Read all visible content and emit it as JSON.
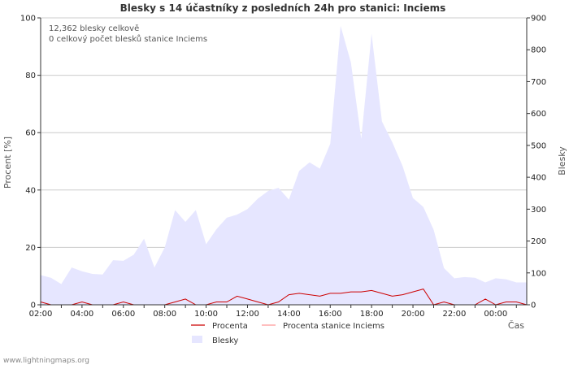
{
  "chart_data": {
    "type": "area",
    "title": "Blesky s 14 účastníky z posledních 24h pro stanici: Inciems",
    "xlabel": "Čas",
    "ylabel_left": "Procent   [%]",
    "ylabel_right": "Blesky",
    "ylim_left": [
      0,
      100
    ],
    "ylim_right": [
      0,
      900
    ],
    "yticks_left": [
      "0",
      "20",
      "40",
      "60",
      "80",
      "100"
    ],
    "yticks_right": [
      "0",
      "100",
      "200",
      "300",
      "400",
      "500",
      "600",
      "700",
      "800",
      "900"
    ],
    "x_tick_labels": [
      "02:00",
      "04:00",
      "06:00",
      "08:00",
      "10:00",
      "12:00",
      "14:00",
      "16:00",
      "18:00",
      "20:00",
      "22:00",
      "00:00"
    ],
    "x_hours": [
      0,
      0.5,
      1,
      1.5,
      2,
      2.5,
      3,
      3.5,
      4,
      4.5,
      5,
      5.5,
      6,
      6.5,
      7,
      7.5,
      8,
      8.5,
      9,
      9.5,
      10,
      10.5,
      11,
      11.5,
      12,
      12.5,
      13,
      13.5,
      14,
      14.5,
      15,
      15.5,
      16,
      16.5,
      17,
      17.5,
      18,
      18.5,
      19,
      19.5,
      20,
      20.5,
      21,
      21.5,
      22,
      22.5,
      23,
      23.5
    ],
    "annotations": [
      "12,362 blesky celkově",
      "0 celkový počet blesků stanice Inciems"
    ],
    "series": [
      {
        "name": "Blesky",
        "axis": "right",
        "color": "#e6e6ff",
        "values": [
          93,
          85,
          65,
          117,
          105,
          97,
          95,
          140,
          138,
          157,
          207,
          117,
          180,
          297,
          260,
          297,
          190,
          237,
          273,
          283,
          300,
          333,
          357,
          367,
          330,
          420,
          447,
          427,
          505,
          875,
          760,
          520,
          850,
          575,
          510,
          435,
          335,
          307,
          235,
          115,
          83,
          87,
          85,
          70,
          83,
          80,
          70,
          70
        ]
      },
      {
        "name": "Procenta",
        "axis": "left",
        "color": "#cc0000",
        "values": [
          1,
          0,
          0,
          0,
          1,
          0,
          0,
          0,
          1,
          0,
          0,
          0,
          0,
          1,
          2,
          0,
          0,
          1,
          1,
          3,
          2,
          1,
          0,
          1,
          3.5,
          4,
          3.5,
          3,
          4,
          4,
          4.5,
          4.5,
          5,
          4,
          3,
          3.5,
          4.5,
          5.5,
          0,
          1,
          0,
          0,
          0,
          2,
          0,
          1,
          1,
          0
        ]
      },
      {
        "name": "Procenta stanice Inciems",
        "axis": "left",
        "color": "#ff9999",
        "values": [
          0,
          0,
          0,
          0,
          0,
          0,
          0,
          0,
          0,
          0,
          0,
          0,
          0,
          0,
          0,
          0,
          0,
          0,
          0,
          0,
          0,
          0,
          0,
          0,
          0,
          0,
          0,
          0,
          0,
          0,
          0,
          0,
          0,
          0,
          0,
          0,
          0,
          0,
          0,
          0,
          0,
          0,
          0,
          0,
          0,
          0,
          0,
          0
        ]
      }
    ]
  },
  "footer": "www.lightningmaps.org"
}
